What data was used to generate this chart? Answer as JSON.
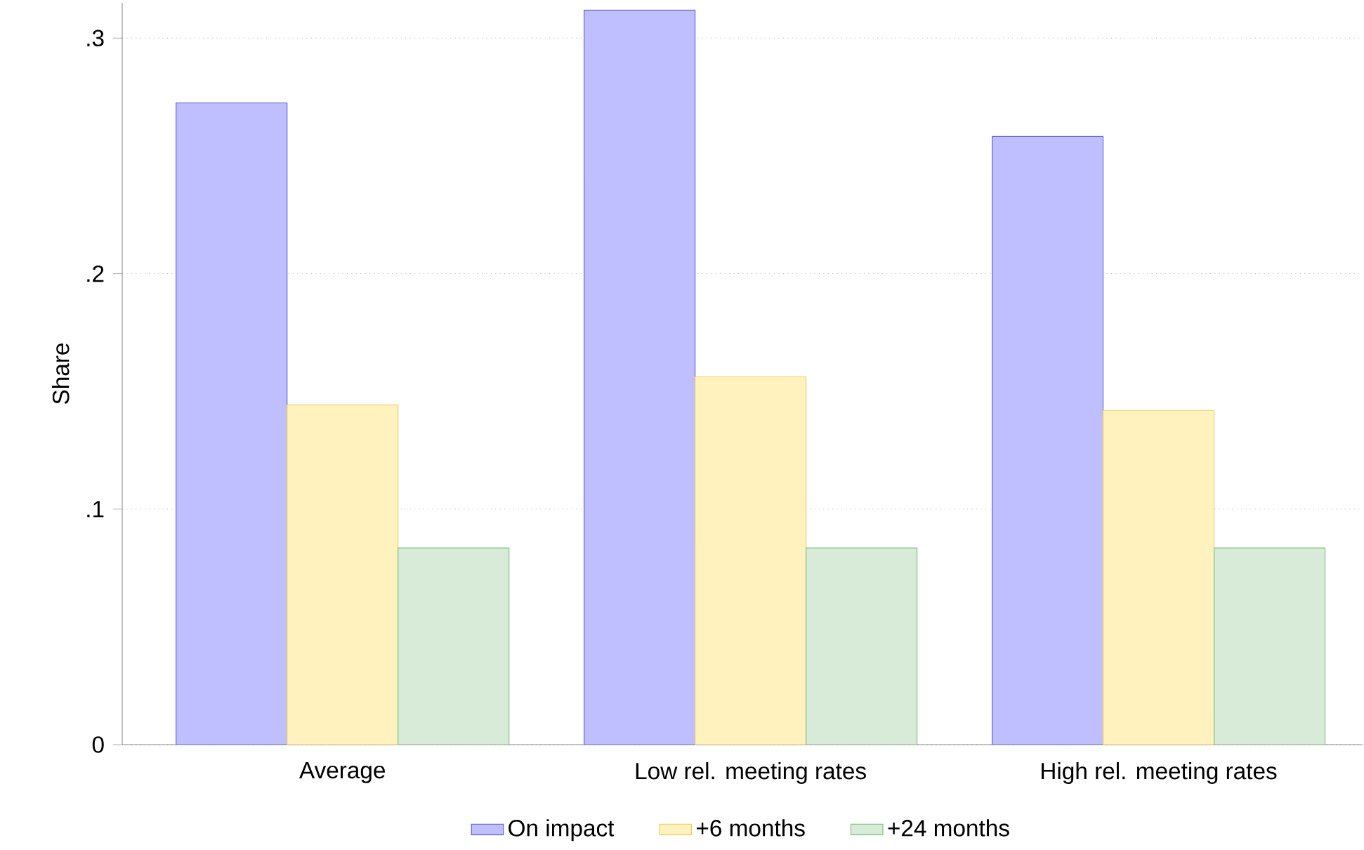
{
  "chart_data": {
    "type": "bar",
    "ylabel": "Share",
    "categories": [
      "Average",
      "Low rel. meeting rates",
      "High rel. meeting rates"
    ],
    "series": [
      {
        "name": "On impact",
        "color": "#bfbfff",
        "values": [
          0.2725,
          0.3119,
          0.2582
        ]
      },
      {
        "name": "+6 months",
        "color": "#fff2bf",
        "values": [
          0.1443,
          0.1562,
          0.1419
        ]
      },
      {
        "name": "+24 months",
        "color": "#d8ebd8",
        "values": [
          0.0835,
          0.0835,
          0.0835
        ]
      }
    ],
    "ylim": [
      0,
      0.315
    ],
    "yticks": [
      {
        "value": 0,
        "label": "0"
      },
      {
        "value": 0.1,
        "label": ".1"
      },
      {
        "value": 0.2,
        "label": ".2"
      },
      {
        "value": 0.3,
        "label": ".3"
      }
    ],
    "grid": "y",
    "legend": "bottom"
  }
}
